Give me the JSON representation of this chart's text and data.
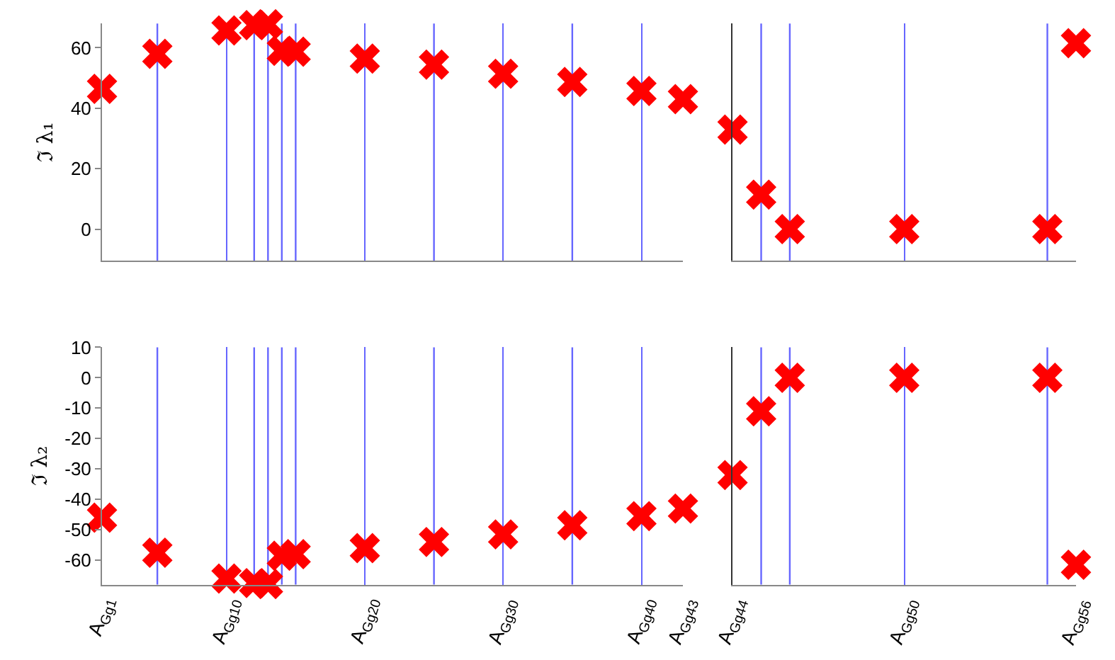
{
  "chart_data": [
    {
      "type": "scatter",
      "ylabel": "ℑ λ₁",
      "marker": "cross",
      "grid": "x",
      "tick_labels": "y",
      "categories": [
        "A$_{Gg1}$",
        null,
        null,
        null,
        null,
        null,
        null,
        null,
        null,
        "A$_{Gg10}$",
        null,
        null,
        null,
        null,
        null,
        null,
        null,
        null,
        null,
        "A$_{Gg20}$",
        null,
        null,
        null,
        null,
        null,
        null,
        null,
        null,
        null,
        "A$_{Gg30}$",
        null,
        null,
        null,
        null,
        null,
        null,
        null,
        null,
        null,
        "A$_{Gg40}$",
        null,
        null,
        "A$_{Gg43}$"
      ],
      "series": [
        {
          "color": "#ff0000",
          "values": [
            46.4,
            null,
            null,
            null,
            58,
            null,
            null,
            null,
            null,
            65.7,
            null,
            67.5,
            67.8,
            59,
            58.7,
            null,
            null,
            null,
            null,
            56.4,
            null,
            null,
            null,
            null,
            54.4,
            null,
            null,
            null,
            null,
            51.4,
            null,
            null,
            null,
            null,
            48.7,
            null,
            null,
            null,
            null,
            45.7,
            null,
            null,
            43
          ]
        }
      ],
      "ylim": [
        -10.5,
        68
      ],
      "yticks": [
        0,
        20,
        40,
        60
      ]
    },
    {
      "type": "scatter",
      "marker": "cross",
      "grid": "x",
      "tick_labels": false,
      "categories": [
        "A$_{Gg44}$",
        null,
        null,
        null,
        null,
        null,
        "A$_{Gg50}$",
        null,
        null,
        null,
        null,
        null,
        "A$_{Gg56}$"
      ],
      "series": [
        {
          "color": "#ff0000",
          "values": [
            32.9,
            11.4,
            0,
            null,
            null,
            null,
            0,
            null,
            null,
            null,
            null,
            0,
            61.5
          ]
        }
      ],
      "ylim": [
        -10.5,
        68
      ]
    },
    {
      "type": "scatter",
      "ylabel": "ℑ λ₂",
      "marker": "cross",
      "grid": "x",
      "categories": [
        "A$_{Gg1}$",
        null,
        null,
        null,
        null,
        null,
        null,
        null,
        null,
        "A$_{Gg10}$",
        null,
        null,
        null,
        null,
        null,
        null,
        null,
        null,
        null,
        "A$_{Gg20}$",
        null,
        null,
        null,
        null,
        null,
        null,
        null,
        null,
        null,
        "A$_{Gg30}$",
        null,
        null,
        null,
        null,
        null,
        null,
        null,
        null,
        null,
        "A$_{Gg40}$",
        null,
        null,
        "A$_{Gg43}$"
      ],
      "series": [
        {
          "color": "#ff0000",
          "values": [
            -46,
            null,
            null,
            null,
            -57.5,
            null,
            null,
            null,
            null,
            -66,
            null,
            -67.5,
            -67.8,
            -58.5,
            -58,
            null,
            null,
            null,
            null,
            -56,
            null,
            null,
            null,
            null,
            -54,
            null,
            null,
            null,
            null,
            -51.5,
            null,
            null,
            null,
            null,
            -48.5,
            null,
            null,
            null,
            null,
            -45.5,
            null,
            null,
            -43
          ]
        }
      ],
      "ylim": [
        -68,
        10
      ],
      "yticks": [
        -60,
        -50,
        -40,
        -30,
        -20,
        -10,
        0,
        10
      ]
    },
    {
      "type": "scatter",
      "marker": "cross",
      "grid": "x",
      "tick_labels": "x",
      "categories": [
        "A$_{Gg44}$",
        null,
        null,
        null,
        null,
        null,
        "A$_{Gg50}$",
        null,
        null,
        null,
        null,
        null,
        "A$_{Gg56}$"
      ],
      "series": [
        {
          "color": "#ff0000",
          "values": [
            -32,
            -11,
            0,
            null,
            null,
            null,
            0,
            null,
            null,
            null,
            null,
            0,
            -61.5
          ]
        }
      ],
      "ylim": [
        -68,
        10
      ]
    }
  ]
}
